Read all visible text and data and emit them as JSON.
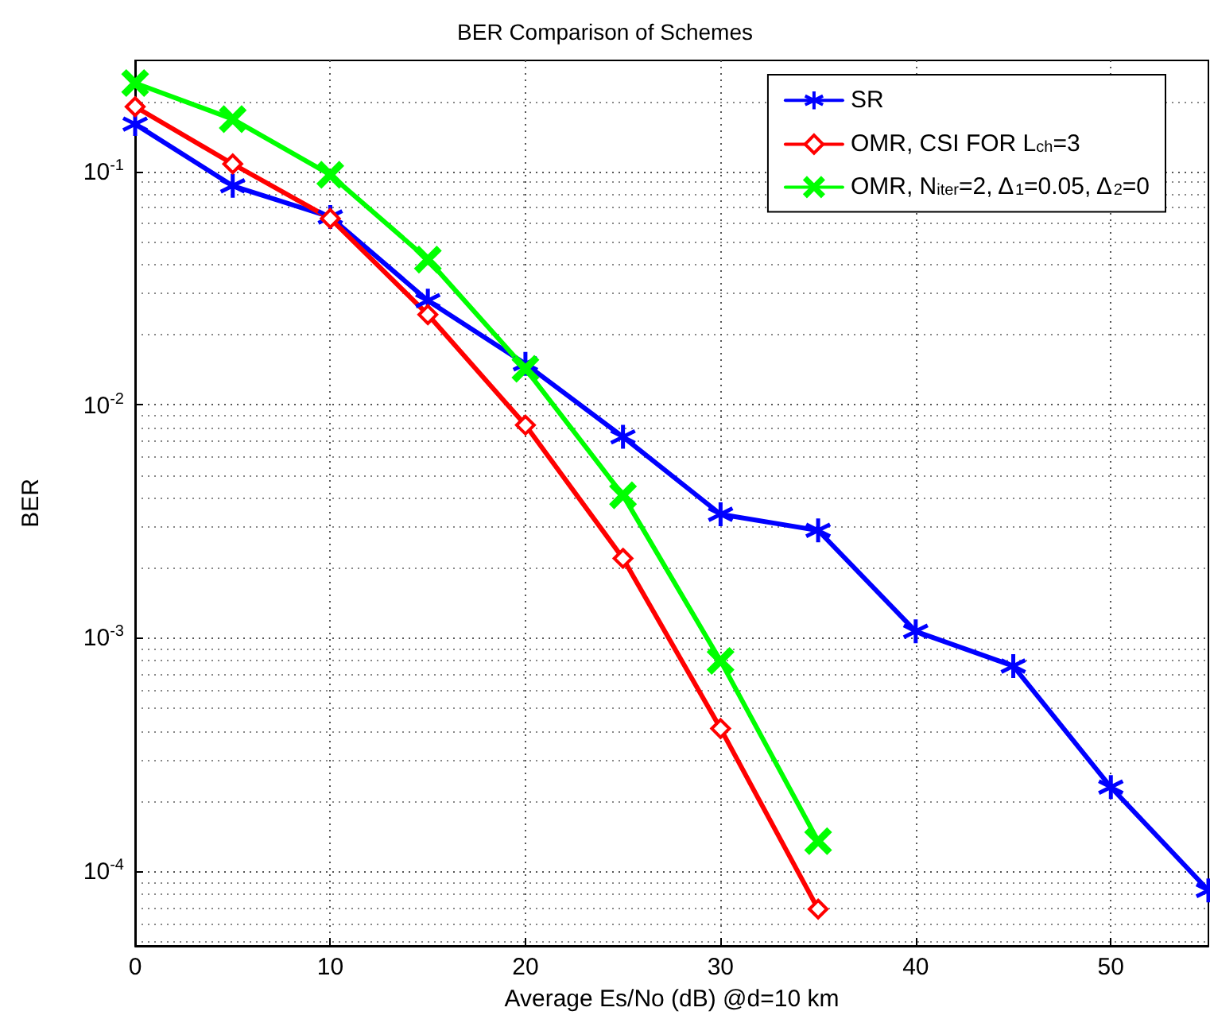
{
  "chart_data": {
    "type": "line",
    "title": "BER Comparison of Schemes",
    "xlabel": "Average Es/No (dB) @d=10 km",
    "ylabel": "BER",
    "x": [
      0,
      5,
      10,
      15,
      20,
      25,
      30,
      35,
      40,
      45,
      50,
      55
    ],
    "series": [
      {
        "name": "SR",
        "color": "#0000ff",
        "marker": "star",
        "values": [
          0.16,
          0.087,
          0.064,
          0.028,
          0.015,
          0.0073,
          0.0034,
          0.0029,
          0.00107,
          0.00076,
          0.00023,
          8.3e-05
        ]
      },
      {
        "name": "OMR, CSI FOR L$_{ch}$=3",
        "color": "#ff0000",
        "marker": "diamond",
        "values": [
          0.19,
          0.108,
          0.063,
          0.0244,
          0.0082,
          0.0022,
          0.00041,
          6.9e-05,
          null,
          null,
          null,
          null
        ]
      },
      {
        "name": "OMR, N$_{iter}$=2, Δ$_{1}$=0.05, Δ$_{2}$=0",
        "color": "#00ff00",
        "marker": "cross",
        "values": [
          0.24,
          0.168,
          0.097,
          0.042,
          0.0143,
          0.0041,
          0.0008,
          0.000135,
          null,
          null,
          null,
          null
        ]
      }
    ],
    "log": "y",
    "xlim": [
      0,
      55
    ],
    "xticks": [
      0,
      10,
      20,
      30,
      40,
      50
    ],
    "ylim": [
      4.8e-05,
      0.3
    ],
    "yticks": [
      {
        "value": 0.0001,
        "label": "10$^{-4}$"
      },
      {
        "value": 0.001,
        "label": "10$^{-3}$"
      },
      {
        "value": 0.01,
        "label": "10$^{-2}$"
      },
      {
        "value": 0.1,
        "label": "10$^{-1}$"
      }
    ],
    "grid": true,
    "legend": "top right",
    "line_style": "solid"
  }
}
